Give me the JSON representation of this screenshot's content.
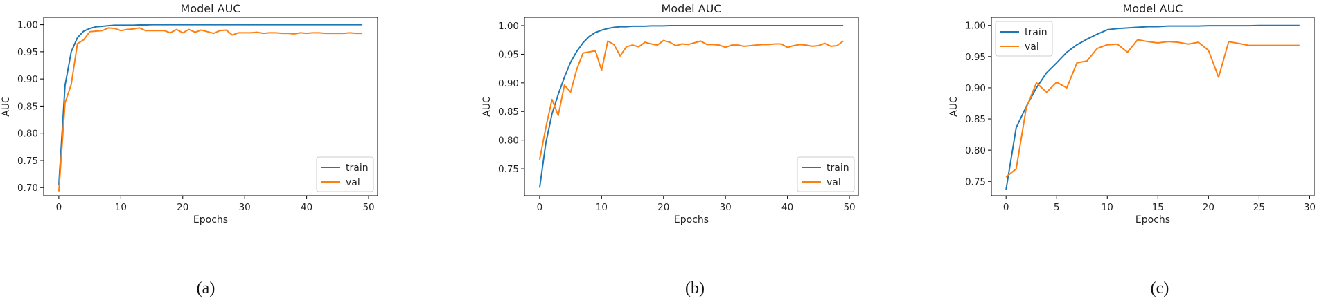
{
  "figure": {
    "colors": {
      "train": "#1f77b4",
      "val": "#ff7f0e"
    }
  },
  "chart_data": [
    {
      "type": "line",
      "title": "Model AUC",
      "xlabel": "Epochs",
      "ylabel": "AUC",
      "caption": "(a)",
      "xlim": [
        -2.45,
        51.45
      ],
      "ylim": [
        0.685,
        1.0135
      ],
      "xticks": [
        0,
        10,
        20,
        30,
        40,
        50
      ],
      "yticks": [
        0.7,
        0.75,
        0.8,
        0.85,
        0.9,
        0.95,
        1.0
      ],
      "ytick_labels": [
        "0.70",
        "0.75",
        "0.80",
        "0.85",
        "0.90",
        "0.95",
        "1.00"
      ],
      "legend": "lower-right",
      "grid": false,
      "series": [
        {
          "name": "train",
          "color": "#1f77b4",
          "values": [
            0.705,
            0.888,
            0.95,
            0.976,
            0.988,
            0.993,
            0.996,
            0.997,
            0.998,
            0.999,
            0.999,
            0.999,
            0.999,
            0.9995,
            0.9995,
            1.0,
            1.0,
            1.0,
            1.0,
            1.0,
            1.0,
            1.0,
            1.0,
            1.0,
            1.0,
            1.0,
            1.0,
            1.0,
            1.0,
            1.0,
            1.0,
            1.0,
            1.0,
            1.0,
            1.0,
            1.0,
            1.0,
            1.0,
            1.0,
            1.0,
            1.0,
            1.0,
            1.0,
            1.0,
            1.0,
            1.0,
            1.0,
            1.0,
            1.0,
            1.0
          ]
        },
        {
          "name": "val",
          "color": "#ff7f0e",
          "values": [
            0.693,
            0.856,
            0.89,
            0.965,
            0.972,
            0.987,
            0.988,
            0.989,
            0.994,
            0.993,
            0.989,
            0.991,
            0.992,
            0.994,
            0.989,
            0.989,
            0.989,
            0.989,
            0.985,
            0.991,
            0.985,
            0.991,
            0.986,
            0.99,
            0.987,
            0.984,
            0.989,
            0.99,
            0.981,
            0.985,
            0.985,
            0.985,
            0.986,
            0.984,
            0.985,
            0.985,
            0.984,
            0.984,
            0.983,
            0.985,
            0.984,
            0.985,
            0.985,
            0.984,
            0.984,
            0.984,
            0.984,
            0.985,
            0.984,
            0.984
          ]
        }
      ]
    },
    {
      "type": "line",
      "title": "Model AUC",
      "xlabel": "Epochs",
      "ylabel": "AUC",
      "caption": "(b)",
      "xlim": [
        -2.45,
        51.45
      ],
      "ylim": [
        0.703,
        1.0145
      ],
      "xticks": [
        0,
        10,
        20,
        30,
        40,
        50
      ],
      "yticks": [
        0.75,
        0.8,
        0.85,
        0.9,
        0.95,
        1.0
      ],
      "ytick_labels": [
        "0.75",
        "0.80",
        "0.85",
        "0.90",
        "0.95",
        "1.00"
      ],
      "legend": "lower-right",
      "grid": false,
      "series": [
        {
          "name": "train",
          "color": "#1f77b4",
          "values": [
            0.717,
            0.795,
            0.846,
            0.88,
            0.91,
            0.936,
            0.955,
            0.97,
            0.981,
            0.988,
            0.992,
            0.995,
            0.997,
            0.998,
            0.998,
            0.999,
            0.999,
            0.999,
            0.9995,
            0.9995,
            0.9995,
            1.0,
            1.0,
            1.0,
            1.0,
            1.0,
            1.0,
            1.0,
            1.0,
            1.0,
            1.0,
            1.0,
            1.0,
            1.0,
            1.0,
            1.0,
            1.0,
            1.0,
            1.0,
            1.0,
            1.0,
            1.0,
            1.0,
            1.0,
            1.0,
            1.0,
            1.0,
            1.0,
            1.0,
            1.0
          ]
        },
        {
          "name": "val",
          "color": "#ff7f0e",
          "values": [
            0.766,
            0.822,
            0.871,
            0.843,
            0.896,
            0.884,
            0.924,
            0.952,
            0.954,
            0.956,
            0.922,
            0.973,
            0.967,
            0.947,
            0.963,
            0.966,
            0.963,
            0.971,
            0.968,
            0.966,
            0.974,
            0.971,
            0.965,
            0.968,
            0.967,
            0.97,
            0.973,
            0.967,
            0.967,
            0.966,
            0.962,
            0.966,
            0.966,
            0.964,
            0.965,
            0.966,
            0.967,
            0.967,
            0.968,
            0.968,
            0.962,
            0.965,
            0.967,
            0.966,
            0.964,
            0.965,
            0.969,
            0.964,
            0.965,
            0.973
          ]
        }
      ]
    },
    {
      "type": "line",
      "title": "Model AUC",
      "xlabel": "Epochs",
      "ylabel": "AUC",
      "caption": "(c)",
      "xlim": [
        -1.45,
        30.45
      ],
      "ylim": [
        0.727,
        1.013
      ],
      "xticks": [
        0,
        5,
        10,
        15,
        20,
        25,
        30
      ],
      "yticks": [
        0.75,
        0.8,
        0.85,
        0.9,
        0.95,
        1.0
      ],
      "ytick_labels": [
        "0.75",
        "0.80",
        "0.85",
        "0.90",
        "0.95",
        "1.00"
      ],
      "legend": "upper-left",
      "grid": false,
      "series": [
        {
          "name": "train",
          "color": "#1f77b4",
          "values": [
            0.737,
            0.836,
            0.87,
            0.9,
            0.924,
            0.94,
            0.957,
            0.969,
            0.978,
            0.986,
            0.993,
            0.995,
            0.996,
            0.997,
            0.998,
            0.998,
            0.999,
            0.999,
            0.999,
            0.999,
            0.9995,
            0.9995,
            0.9995,
            0.9995,
            0.9995,
            1.0,
            1.0,
            1.0,
            1.0,
            1.0
          ]
        },
        {
          "name": "val",
          "color": "#ff7f0e",
          "values": [
            0.757,
            0.77,
            0.868,
            0.908,
            0.893,
            0.909,
            0.9,
            0.94,
            0.943,
            0.963,
            0.969,
            0.97,
            0.957,
            0.977,
            0.974,
            0.972,
            0.974,
            0.973,
            0.97,
            0.973,
            0.96,
            0.917,
            0.974,
            0.971,
            0.968,
            0.968,
            0.968,
            0.968,
            0.968,
            0.968
          ]
        }
      ]
    }
  ]
}
